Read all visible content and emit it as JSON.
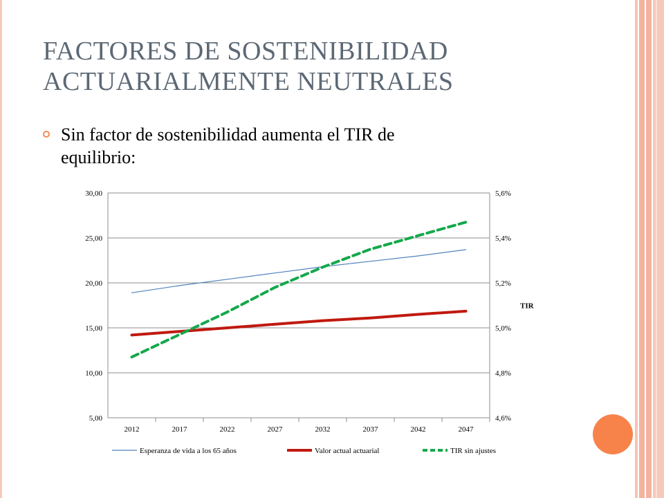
{
  "slide": {
    "title_line1": "FACTORES DE SOSTENIBILIDAD",
    "title_line2": "ACTUARIALMENTE NEUTRALES",
    "bullet_line1": "Sin factor de sostenibilidad aumenta el TIR de",
    "bullet_line2": "equilibrio:"
  },
  "theme": {
    "accent": "#f7834b",
    "title_color": "#5c6874"
  },
  "chart_data": {
    "type": "line",
    "categories": [
      "2012",
      "2017",
      "2022",
      "2027",
      "2032",
      "2037",
      "2042",
      "2047"
    ],
    "ylim": [
      5,
      30
    ],
    "yticks": [
      "30,00",
      "25,00",
      "20,00",
      "15,00",
      "10,00",
      "5,00"
    ],
    "ytick_values": [
      30,
      25,
      20,
      15,
      10,
      5
    ],
    "y2lim": [
      4.6,
      5.6
    ],
    "y2ticks": [
      "5,6%",
      "5,4%",
      "5,2%",
      "5,0%",
      "4,8%",
      "4,6%"
    ],
    "y2tick_values": [
      5.6,
      5.4,
      5.2,
      5.0,
      4.8,
      4.6
    ],
    "y2label": "TIR",
    "grid": true,
    "legend_position": "bottom",
    "series": [
      {
        "name": "Esperanza de vida a los 65 años",
        "axis": "left",
        "color": "#4f81bd",
        "style": "solid-thin",
        "values": [
          18.9,
          19.7,
          20.4,
          21.1,
          21.8,
          22.4,
          23.0,
          23.7
        ]
      },
      {
        "name": "Valor actual actuarial",
        "axis": "left",
        "color": "#c0190f",
        "style": "solid-thick",
        "values": [
          14.2,
          14.6,
          15.0,
          15.4,
          15.8,
          16.1,
          16.5,
          16.85
        ]
      },
      {
        "name": "TIR sin ajustes",
        "axis": "right",
        "color": "#14a84b",
        "style": "dashed",
        "values": [
          4.87,
          4.97,
          5.07,
          5.18,
          5.27,
          5.35,
          5.41,
          5.47
        ]
      }
    ]
  }
}
